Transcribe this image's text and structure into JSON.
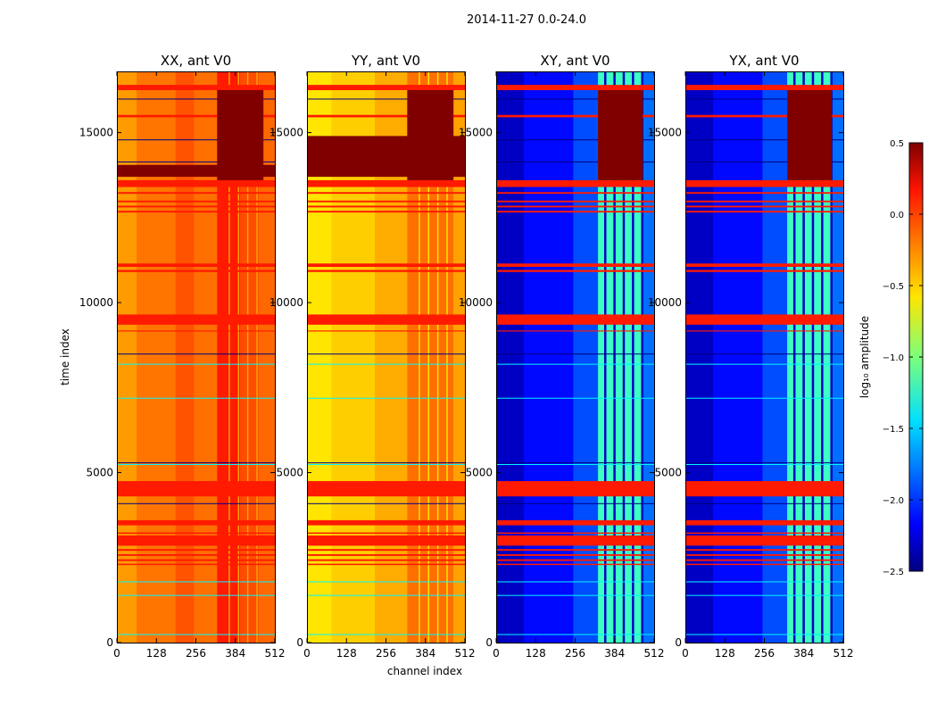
{
  "figure": {
    "suptitle": "2014-11-27 0.0-24.0"
  },
  "chart_data": {
    "type": "heatmap",
    "x": {
      "label": "channel index",
      "range": [
        0,
        512
      ],
      "ticks": [
        0,
        128,
        256,
        384,
        512
      ]
    },
    "y": {
      "label": "time index",
      "range": [
        0,
        16800
      ],
      "ticks": [
        0,
        5000,
        10000,
        15000
      ]
    },
    "colorbar": {
      "label": "log₁₀ amplitude",
      "colormap": "jet",
      "range": [
        -2.5,
        0.5
      ],
      "ticks": [
        0.5,
        0.0,
        -0.5,
        -1.0,
        -1.5,
        -2.0,
        -2.5
      ],
      "tick_labels": [
        "0.5",
        "0.0",
        "−0.5",
        "−1.0",
        "−1.5",
        "−2.0",
        "−2.5"
      ]
    },
    "panels": [
      {
        "title": "XX, ant V0",
        "kind": "auto",
        "background_level": -0.25,
        "column_bands": [
          {
            "channels": [
              0,
              64
            ],
            "level": -0.33
          },
          {
            "channels": [
              64,
              190
            ],
            "level": -0.22
          },
          {
            "channels": [
              190,
              250
            ],
            "level": -0.12
          },
          {
            "channels": [
              250,
              325
            ],
            "level": -0.2
          },
          {
            "channels": [
              325,
              400
            ],
            "level": 0.05
          },
          {
            "channels": [
              400,
              460
            ],
            "level": -0.1
          },
          {
            "channels": [
              460,
              512
            ],
            "level": -0.18
          }
        ],
        "saturated_blocks": [
          {
            "channels": [
              0,
              512
            ],
            "time": [
              13700,
              14050
            ],
            "level": 0.5
          },
          {
            "channels": [
              325,
              475
            ],
            "time": [
              13600,
              16300
            ],
            "level": 0.5
          }
        ]
      },
      {
        "title": "YY, ant V0",
        "kind": "auto",
        "background_level": -0.45,
        "column_bands": [
          {
            "channels": [
              0,
              80
            ],
            "level": -0.55
          },
          {
            "channels": [
              80,
              220
            ],
            "level": -0.48
          },
          {
            "channels": [
              220,
              325
            ],
            "level": -0.38
          },
          {
            "channels": [
              325,
              475
            ],
            "level": -0.2
          },
          {
            "channels": [
              475,
              512
            ],
            "level": -0.35
          }
        ],
        "saturated_blocks": [
          {
            "channels": [
              0,
              512
            ],
            "time": [
              13700,
              14900
            ],
            "level": 0.5
          },
          {
            "channels": [
              325,
              475
            ],
            "time": [
              13600,
              16300
            ],
            "level": 0.5
          }
        ]
      },
      {
        "title": "XY, ant V0",
        "kind": "cross",
        "background_level": -2.2,
        "column_bands": [
          {
            "channels": [
              0,
              90
            ],
            "level": -2.3
          },
          {
            "channels": [
              90,
              250
            ],
            "level": -2.1
          },
          {
            "channels": [
              250,
              330
            ],
            "level": -1.9
          },
          {
            "channels": [
              330,
              475
            ],
            "level": -1.2
          },
          {
            "channels": [
              475,
              512
            ],
            "level": -1.8
          }
        ],
        "saturated_blocks": [
          {
            "channels": [
              330,
              475
            ],
            "time": [
              13600,
              16300
            ],
            "level": 0.5
          }
        ]
      },
      {
        "title": "YX, ant V0",
        "kind": "cross",
        "background_level": -2.2,
        "column_bands": [
          {
            "channels": [
              0,
              90
            ],
            "level": -2.3
          },
          {
            "channels": [
              90,
              250
            ],
            "level": -2.1
          },
          {
            "channels": [
              250,
              330
            ],
            "level": -1.9
          },
          {
            "channels": [
              330,
              475
            ],
            "level": -1.2
          },
          {
            "channels": [
              475,
              512
            ],
            "level": -1.8
          }
        ],
        "saturated_blocks": [
          {
            "channels": [
              330,
              475
            ],
            "time": [
              13600,
              16300
            ],
            "level": 0.5
          }
        ]
      }
    ],
    "flagged_time_bands": [
      {
        "time": [
          16250,
          16400
        ],
        "level": 0.05
      },
      {
        "time": [
          15450,
          15520
        ],
        "level": 0.05
      },
      {
        "time": [
          13400,
          13600
        ],
        "level": 0.05
      },
      {
        "time": [
          13200,
          13250
        ],
        "level": 0.05
      },
      {
        "time": [
          12950,
          13000
        ],
        "level": 0.05
      },
      {
        "time": [
          12800,
          12850
        ],
        "level": 0.05
      },
      {
        "time": [
          12650,
          12700
        ],
        "level": 0.05
      },
      {
        "time": [
          11050,
          11150
        ],
        "level": 0.05
      },
      {
        "time": [
          10900,
          10960
        ],
        "level": 0.05
      },
      {
        "time": [
          9350,
          9650
        ],
        "level": 0.05
      },
      {
        "time": [
          9150,
          9180
        ],
        "level": 0.05
      },
      {
        "time": [
          4300,
          4750
        ],
        "level": 0.05
      },
      {
        "time": [
          3450,
          3600
        ],
        "level": 0.05
      },
      {
        "time": [
          3200,
          3240
        ],
        "level": 0.05
      },
      {
        "time": [
          2850,
          3150
        ],
        "level": 0.05
      },
      {
        "time": [
          2700,
          2750
        ],
        "level": 0.05
      },
      {
        "time": [
          2550,
          2600
        ],
        "level": 0.05
      },
      {
        "time": [
          2400,
          2450
        ],
        "level": 0.05
      },
      {
        "time": [
          2280,
          2320
        ],
        "level": 0.05
      }
    ],
    "thin_lines": [
      {
        "time": 16000,
        "level": -2.5
      },
      {
        "time": 14800,
        "level": -2.5
      },
      {
        "time": 14150,
        "level": -2.5
      },
      {
        "time": 8500,
        "level": -2.5
      },
      {
        "time": 8200,
        "level": -1.4
      },
      {
        "time": 7200,
        "level": -1.4
      },
      {
        "time": 5300,
        "level": -2.5
      },
      {
        "time": 5250,
        "level": -1.4
      },
      {
        "time": 4100,
        "level": -2.5
      },
      {
        "time": 1800,
        "level": -1.4
      },
      {
        "time": 1400,
        "level": -1.4
      },
      {
        "time": 250,
        "level": -1.4
      }
    ]
  }
}
